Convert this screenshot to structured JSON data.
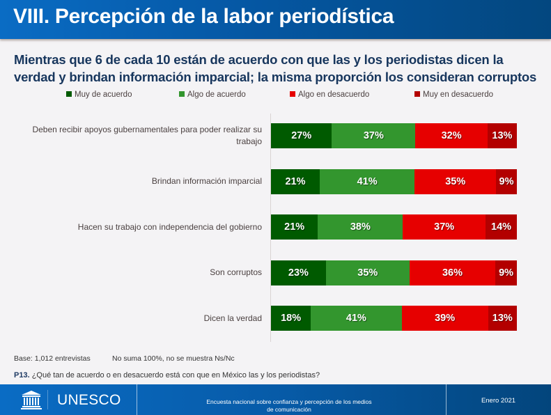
{
  "header": {
    "title": "VIII. Percepción de la labor periodística"
  },
  "subtitle": "Mientras que 6 de cada 10 están de acuerdo con que las y los periodistas dicen la verdad y brindan información imparcial; la misma proporción los consideran corruptos",
  "chart_data": {
    "type": "bar",
    "orientation": "horizontal",
    "stacked": true,
    "normalized": true,
    "title": "Mientras que 6 de cada 10 están de acuerdo con que las y los periodistas dicen la verdad y brindan información imparcial; la misma proporción los consideran corruptos",
    "xlabel": "",
    "ylabel": "",
    "legend_position": "top",
    "grid": false,
    "categories": [
      "Deben recibir apoyos gubernamentales para poder realizar su trabajo",
      "Brindan información imparcial",
      "Hacen su trabajo con independencia del gobierno",
      "Son corruptos",
      "Dicen la verdad"
    ],
    "series": [
      {
        "name": "Muy de acuerdo",
        "color": "#005a00",
        "values": [
          27,
          21,
          21,
          23,
          18
        ]
      },
      {
        "name": "Algo de acuerdo",
        "color": "#33962e",
        "values": [
          37,
          41,
          38,
          35,
          41
        ]
      },
      {
        "name": "Algo en desacuerdo",
        "color": "#e60000",
        "values": [
          32,
          35,
          37,
          36,
          39
        ]
      },
      {
        "name": "Muy en desacuerdo",
        "color": "#b30000",
        "values": [
          13,
          9,
          14,
          9,
          13
        ]
      }
    ],
    "value_suffix": "%"
  },
  "notes": {
    "base": "Base: 1,012 entrevistas",
    "sum_note": "No suma 100%, no se muestra Ns/Nc",
    "question_code": "P13.",
    "question_text": " ¿Qué tan de acuerdo o en desacuerdo está con que en México las y los periodistas?"
  },
  "footer": {
    "logo_text": "UNESCO",
    "survey_line1": "Encuesta nacional sobre confianza y percepción de los medios",
    "survey_line2": "de comunicación",
    "date": "Enero 2021"
  }
}
